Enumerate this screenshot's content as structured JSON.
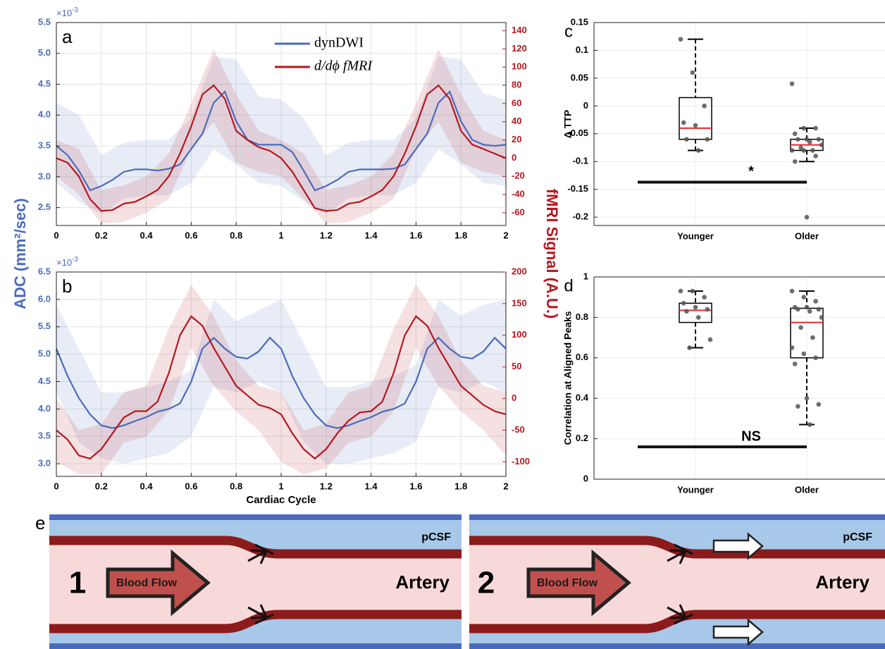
{
  "chart_data": [
    {
      "type": "line",
      "panel_label": "a",
      "x": [
        0,
        0.05,
        0.1,
        0.15,
        0.2,
        0.25,
        0.3,
        0.35,
        0.4,
        0.45,
        0.5,
        0.55,
        0.6,
        0.65,
        0.7,
        0.75,
        0.8,
        0.85,
        0.9,
        0.95,
        1,
        1.05,
        1.1,
        1.15,
        1.2,
        1.25,
        1.3,
        1.35,
        1.4,
        1.45,
        1.5,
        1.55,
        1.6,
        1.65,
        1.7,
        1.75,
        1.8,
        1.85,
        1.9,
        1.95,
        2
      ],
      "band_x": [
        0,
        0.1,
        0.2,
        0.3,
        0.4,
        0.5,
        0.6,
        0.7,
        0.8,
        0.9,
        1,
        1.1,
        1.2,
        1.3,
        1.4,
        1.5,
        1.6,
        1.7,
        1.8,
        1.9,
        2
      ],
      "xlim": [
        0,
        2
      ],
      "xticks": [
        0,
        0.2,
        0.4,
        0.6,
        0.8,
        1,
        1.2,
        1.4,
        1.6,
        1.8,
        2
      ],
      "ylim": [
        2.21,
        5.5
      ],
      "yticks": [
        2.5,
        {
          "value": 3,
          "label": "3.0"
        },
        3.5,
        {
          "value": 4,
          "label": "4.0"
        },
        4.5,
        {
          "value": 5,
          "label": "5.0"
        },
        5.5
      ],
      "y_multiplier": {
        "base": "×10",
        "exponent": "-3"
      },
      "y2lim": [
        -74,
        149
      ],
      "y2ticks": [
        -60,
        -40,
        -20,
        0,
        20,
        40,
        60,
        80,
        100,
        120,
        140
      ],
      "grid": true,
      "legend": "top",
      "series": [
        {
          "name": "dynDWI",
          "color": "#4a6bbd",
          "values": [
            3.5,
            3.35,
            3.1,
            2.78,
            2.85,
            2.95,
            3.08,
            3.12,
            3.12,
            3.1,
            3.13,
            3.2,
            3.45,
            3.7,
            4.2,
            4.38,
            3.9,
            3.6,
            3.52,
            3.52,
            3.52,
            3.4,
            3.1,
            2.78,
            2.85,
            2.95,
            3.08,
            3.12,
            3.12,
            3.12,
            3.13,
            3.2,
            3.45,
            3.7,
            4.2,
            4.38,
            3.9,
            3.6,
            3.52,
            3.5,
            3.52
          ],
          "band": {
            "upper": [
              4.2,
              4.0,
              3.35,
              3.55,
              3.6,
              3.6,
              3.95,
              4.95,
              4.9,
              4.3,
              4.25,
              3.95,
              3.35,
              3.55,
              3.6,
              3.6,
              3.95,
              4.95,
              4.9,
              4.35,
              4.25
            ],
            "lower": [
              2.9,
              2.6,
              2.4,
              2.65,
              2.7,
              2.7,
              2.9,
              3.45,
              3.2,
              2.9,
              2.85,
              2.6,
              2.4,
              2.65,
              2.7,
              2.7,
              2.9,
              3.45,
              3.2,
              2.9,
              2.85
            ]
          }
        },
        {
          "name": "d/dϕ fMRI",
          "color": "#b5181f",
          "axis": "y2",
          "values": [
            0,
            -5,
            -20,
            -45,
            -58,
            -57,
            -50,
            -48,
            -42,
            -35,
            -20,
            5,
            35,
            70,
            80,
            65,
            30,
            20,
            12,
            8,
            0,
            -15,
            -35,
            -55,
            -58,
            -57,
            -50,
            -48,
            -42,
            -35,
            -20,
            5,
            35,
            70,
            80,
            65,
            30,
            15,
            10,
            5,
            0
          ],
          "band": {
            "upper": [
              20,
              10,
              -35,
              -30,
              -20,
              5,
              60,
              120,
              70,
              30,
              20,
              5,
              -35,
              -30,
              -20,
              5,
              60,
              120,
              70,
              30,
              20
            ],
            "lower": [
              -20,
              -40,
              -72,
              -70,
              -60,
              -45,
              10,
              40,
              -5,
              -15,
              -20,
              -45,
              -72,
              -70,
              -60,
              -45,
              10,
              40,
              -5,
              -15,
              -20
            ]
          }
        }
      ]
    },
    {
      "type": "line",
      "panel_label": "b",
      "xlabel": "Cardiac Cycle",
      "x": [
        0,
        0.05,
        0.1,
        0.15,
        0.2,
        0.25,
        0.3,
        0.35,
        0.4,
        0.45,
        0.5,
        0.55,
        0.6,
        0.65,
        0.7,
        0.75,
        0.8,
        0.85,
        0.9,
        0.95,
        1,
        1.05,
        1.1,
        1.15,
        1.2,
        1.25,
        1.3,
        1.35,
        1.4,
        1.45,
        1.5,
        1.55,
        1.6,
        1.65,
        1.7,
        1.75,
        1.8,
        1.85,
        1.9,
        1.95,
        2
      ],
      "band_x": [
        0,
        0.1,
        0.2,
        0.3,
        0.4,
        0.5,
        0.6,
        0.7,
        0.8,
        0.9,
        1,
        1.1,
        1.2,
        1.3,
        1.4,
        1.5,
        1.6,
        1.7,
        1.8,
        1.9,
        2
      ],
      "xlim": [
        0,
        2
      ],
      "xticks": [
        0,
        0.2,
        0.4,
        0.6,
        0.8,
        1,
        1.2,
        1.4,
        1.6,
        1.8,
        2
      ],
      "ylim": [
        2.77,
        6.5
      ],
      "yticks": [
        {
          "value": 3,
          "label": "3.0"
        },
        3.5,
        {
          "value": 4,
          "label": "4.0"
        },
        4.5,
        {
          "value": 5,
          "label": "5.0"
        },
        5.5,
        {
          "value": 6,
          "label": "6.0"
        },
        6.5
      ],
      "y_multiplier": {
        "base": "×10",
        "exponent": "-3"
      },
      "y2lim": [
        -123,
        200
      ],
      "y2ticks": [
        -100,
        -50,
        0,
        50,
        100,
        150,
        200
      ],
      "grid": true,
      "series": [
        {
          "name": "dynDWI",
          "color": "#4a6bbd",
          "values": [
            5.1,
            4.6,
            4.2,
            3.9,
            3.7,
            3.65,
            3.7,
            3.78,
            3.85,
            3.95,
            4.0,
            4.1,
            4.5,
            5.1,
            5.3,
            5.1,
            4.95,
            4.92,
            5.05,
            5.3,
            5.1,
            4.6,
            4.2,
            3.9,
            3.7,
            3.65,
            3.7,
            3.78,
            3.85,
            3.95,
            4.0,
            4.1,
            4.5,
            5.1,
            5.3,
            5.1,
            4.95,
            4.92,
            5.05,
            5.3,
            5.1
          ],
          "band": {
            "upper": [
              5.9,
              5.1,
              4.3,
              4.3,
              4.4,
              4.5,
              4.7,
              6.0,
              5.6,
              5.8,
              6.0,
              5.2,
              4.4,
              4.4,
              4.5,
              4.6,
              4.8,
              6.0,
              5.7,
              5.9,
              6.0
            ],
            "lower": [
              4.3,
              3.4,
              3.1,
              3.0,
              3.1,
              3.2,
              3.5,
              4.4,
              4.3,
              4.5,
              4.3,
              3.4,
              3.0,
              3.0,
              3.1,
              3.2,
              3.4,
              4.4,
              4.3,
              4.5,
              4.3
            ]
          }
        },
        {
          "name": "d/dϕ fMRI",
          "color": "#b5181f",
          "axis": "y2",
          "values": [
            -50,
            -65,
            -90,
            -95,
            -80,
            -55,
            -30,
            -20,
            -20,
            -5,
            40,
            100,
            130,
            115,
            80,
            50,
            20,
            5,
            -10,
            -15,
            -25,
            -55,
            -80,
            -95,
            -80,
            -55,
            -35,
            -22,
            -20,
            -5,
            40,
            100,
            130,
            115,
            80,
            50,
            20,
            5,
            -10,
            -20,
            -25
          ],
          "band": {
            "upper": [
              0,
              -50,
              -40,
              10,
              20,
              110,
              180,
              130,
              60,
              20,
              10,
              -50,
              -40,
              10,
              20,
              110,
              180,
              130,
              60,
              20,
              10
            ],
            "lower": [
              -100,
              -120,
              -120,
              -70,
              -60,
              -20,
              80,
              20,
              -20,
              -50,
              -100,
              -120,
              -110,
              -70,
              -60,
              -20,
              80,
              20,
              -20,
              -50,
              -90
            ]
          }
        }
      ]
    },
    {
      "type": "box",
      "panel_label": "c",
      "ylabel": "Δ TTP",
      "categories": [
        "Younger",
        "Older"
      ],
      "ylim": [
        -0.215,
        0.15
      ],
      "yticks": [
        -0.2,
        -0.15,
        -0.1,
        -0.05,
        0,
        0.05,
        0.1,
        0.15
      ],
      "grid": true,
      "box_color": "#000000",
      "median_color": "#e8282b",
      "point_color": "#555555",
      "boxes": [
        {
          "low": -0.08,
          "q1": -0.06,
          "median": -0.04,
          "q3": 0.015,
          "high": 0.12,
          "points": [
            0.12,
            0.06,
            0,
            -0.03,
            -0.035,
            -0.06,
            -0.06,
            -0.08
          ]
        },
        {
          "low": -0.1,
          "q1": -0.08,
          "median": -0.07,
          "q3": -0.06,
          "high": -0.04,
          "points": [
            0.04,
            -0.04,
            -0.04,
            -0.05,
            -0.06,
            -0.06,
            -0.06,
            -0.065,
            -0.07,
            -0.075,
            -0.08,
            -0.08,
            -0.08,
            -0.09,
            -0.1,
            -0.2
          ]
        }
      ],
      "significance": {
        "label": "*",
        "y": -0.137
      }
    },
    {
      "type": "box",
      "panel_label": "d",
      "ylabel": "Correlation at Aligned Peaks",
      "categories": [
        "Younger",
        "Older"
      ],
      "ylim": [
        0,
        1
      ],
      "yticks": [
        0,
        0.2,
        0.4,
        0.6,
        0.8,
        1
      ],
      "grid": true,
      "box_color": "#000000",
      "median_color": "#e8282b",
      "point_color": "#555555",
      "boxes": [
        {
          "low": 0.65,
          "q1": 0.775,
          "median": 0.835,
          "q3": 0.87,
          "high": 0.93,
          "points": [
            0.93,
            0.93,
            0.9,
            0.87,
            0.85,
            0.84,
            0.83,
            0.8,
            0.69,
            0.65
          ]
        },
        {
          "low": 0.27,
          "q1": 0.6,
          "median": 0.775,
          "q3": 0.845,
          "high": 0.93,
          "points": [
            0.93,
            0.9,
            0.88,
            0.85,
            0.85,
            0.84,
            0.84,
            0.83,
            0.8,
            0.75,
            0.7,
            0.65,
            0.62,
            0.6,
            0.57,
            0.4,
            0.37,
            0.36,
            0.27
          ]
        }
      ],
      "significance": {
        "label": "NS",
        "y": 0.16
      }
    }
  ],
  "shared_labels": {
    "y": "ADC (mm²/sec)",
    "y2": "fMRI Signal (A.U.)"
  },
  "diagram": {
    "label": "e",
    "panels": [
      {
        "number": "1",
        "flow": "Blood Flow",
        "vessel": "Artery",
        "space": "pCSF"
      },
      {
        "number": "2",
        "flow": "Blood Flow",
        "vessel": "Artery",
        "space": "pCSF"
      }
    ]
  }
}
